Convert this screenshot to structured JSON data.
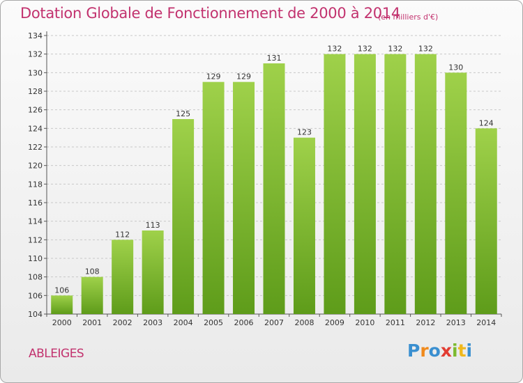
{
  "title": "Dotation Globale de Fonctionnement de 2000 à 2014",
  "subtitle": "(en milliers d'€)",
  "place_name": "ABLEIGES",
  "logo": {
    "text": "Proxiti",
    "letters": [
      {
        "ch": "P",
        "color": "#3a8fd0"
      },
      {
        "ch": "r",
        "color": "#f08a1c"
      },
      {
        "ch": "o",
        "color": "#3a8fd0"
      },
      {
        "ch": "x",
        "color": "#e23c32"
      },
      {
        "ch": "i",
        "color": "#7cba2f"
      },
      {
        "ch": "t",
        "color": "#f0b81c"
      },
      {
        "ch": "i",
        "color": "#3a8fd0"
      }
    ]
  },
  "colors": {
    "bar_top": "#9fd14a",
    "bar_bottom": "#5e9c1a",
    "accent_text": "#c2326e",
    "grid": "#c8c8c8"
  },
  "chart_data": {
    "type": "bar",
    "title": "Dotation Globale de Fonctionnement de 2000 à 2014",
    "subtitle": "(en milliers d'€)",
    "categories": [
      "2000",
      "2001",
      "2002",
      "2003",
      "2004",
      "2005",
      "2006",
      "2007",
      "2008",
      "2009",
      "2010",
      "2011",
      "2012",
      "2013",
      "2014"
    ],
    "values": [
      106,
      108,
      112,
      113,
      125,
      129,
      129,
      131,
      123,
      132,
      132,
      132,
      132,
      130,
      124
    ],
    "ylim": [
      104,
      134
    ],
    "yticks": [
      104,
      106,
      108,
      110,
      112,
      114,
      116,
      118,
      120,
      122,
      124,
      126,
      128,
      130,
      132,
      134
    ],
    "grid": "horizontal-dashed",
    "data_labels": true,
    "legend": "none"
  }
}
